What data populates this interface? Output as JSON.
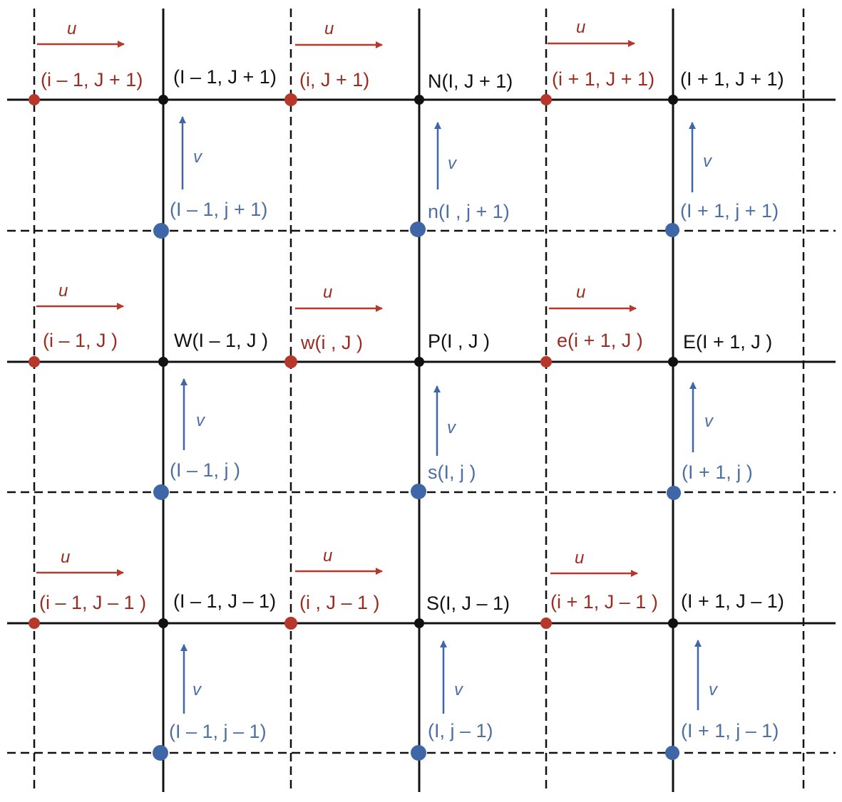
{
  "colors": {
    "grid": "#111111",
    "pressure_node": "#111111",
    "u_velocity": "#b7372a",
    "v_velocity": "#3f67a8",
    "u_label": "#9a2d22",
    "v_label": "#4e6fa3"
  },
  "vector_labels": {
    "u": "u",
    "v": "v"
  },
  "pressure_nodes": [
    {
      "id": "I-1,J+1",
      "label": "(I – 1, J + 1)"
    },
    {
      "id": "I,J+1",
      "label": "N(I, J + 1)"
    },
    {
      "id": "I+1,J+1",
      "label": "(I + 1, J + 1)"
    },
    {
      "id": "I-1,J",
      "label": "W(I – 1, J )"
    },
    {
      "id": "I,J",
      "label": "P(I , J )"
    },
    {
      "id": "I+1,J",
      "label": "E(I  + 1, J )"
    },
    {
      "id": "I-1,J-1",
      "label": "(I  – 1, J – 1)"
    },
    {
      "id": "I,J-1",
      "label": "S(I, J – 1)"
    },
    {
      "id": "I+1,J-1",
      "label": "(I + 1, J – 1)"
    }
  ],
  "u_nodes": [
    {
      "id": "i-1,J+1",
      "label": "(i – 1, J + 1)"
    },
    {
      "id": "i,J+1",
      "label": "(i, J + 1)"
    },
    {
      "id": "i+1,J+1",
      "label": "(i + 1, J + 1)"
    },
    {
      "id": "i-1,J",
      "label": "(i – 1, J )"
    },
    {
      "id": "i,J",
      "label": "w(i , J )"
    },
    {
      "id": "i+1,J",
      "label": "e(i  + 1, J )"
    },
    {
      "id": "i-1,J-1",
      "label": "(i  – 1, J – 1 )"
    },
    {
      "id": "i,J-1",
      "label": "(i , J – 1 )"
    },
    {
      "id": "i+1,J-1",
      "label": "(i  + 1, J – 1 )"
    }
  ],
  "v_nodes": [
    {
      "id": "I-1,j+1",
      "label": "(I – 1, j + 1)"
    },
    {
      "id": "I,j+1",
      "label": "n(I , j + 1)"
    },
    {
      "id": "I+1,j+1",
      "label": "(I  + 1, j + 1)"
    },
    {
      "id": "I-1,j",
      "label": "(I  – 1, j )"
    },
    {
      "id": "I,j",
      "label": "s(I, j )"
    },
    {
      "id": "I+1,j",
      "label": "(I + 1, j )"
    },
    {
      "id": "I-1,j-1",
      "label": "(I – 1, j  – 1)"
    },
    {
      "id": "I,j-1",
      "label": "(I, j  – 1)"
    },
    {
      "id": "I+1,j-1",
      "label": "(I + 1, j  – 1)"
    }
  ]
}
